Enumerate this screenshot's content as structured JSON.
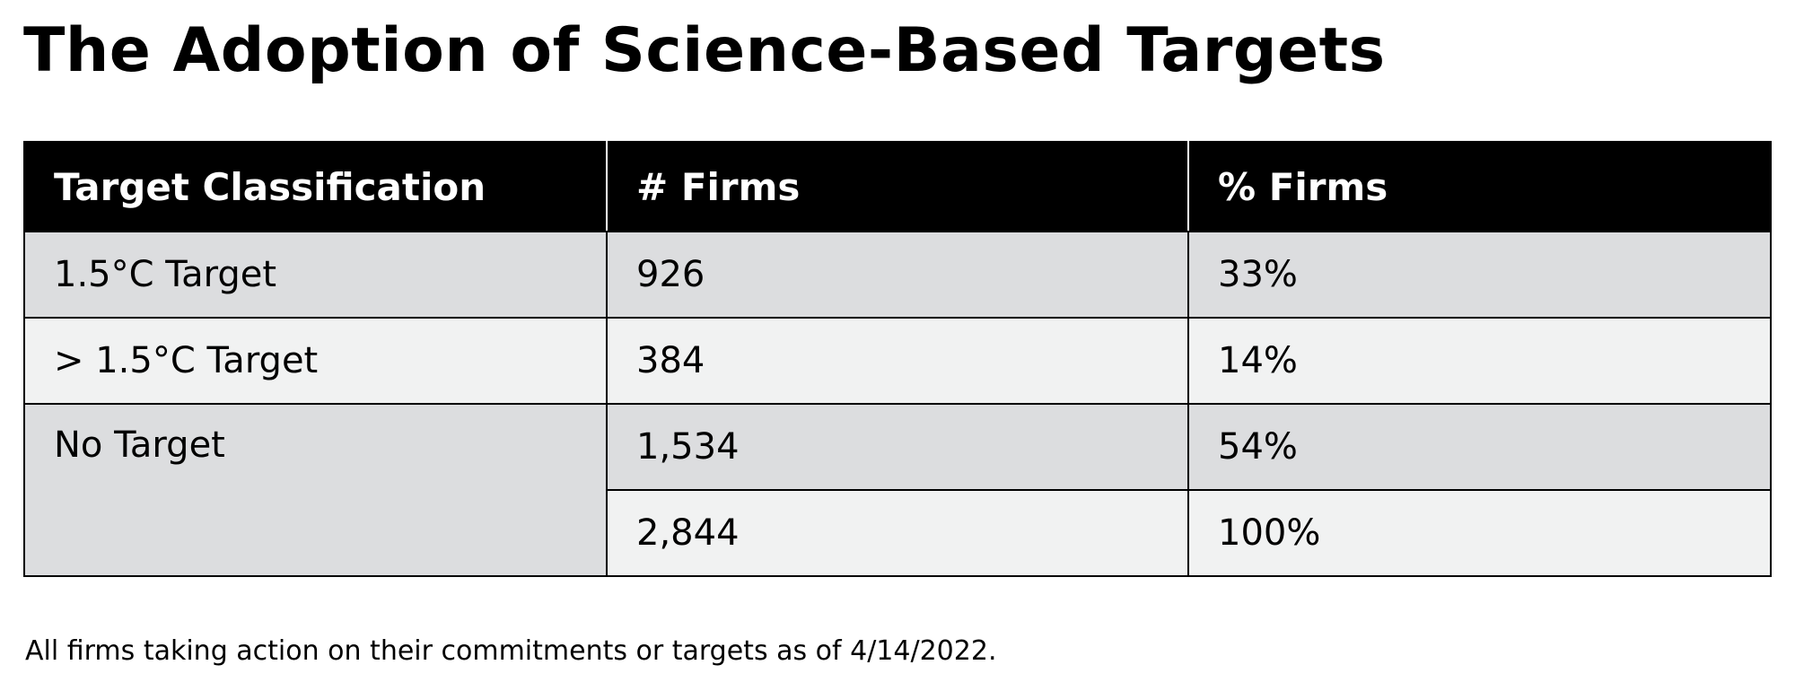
{
  "title": "The Adoption of Science-Based Targets",
  "footnote": "All firms taking action on their commitments or targets as of 4/14/2022.",
  "colors": {
    "header_background": "#000000",
    "header_text": "#ffffff",
    "row_dark": "#dcdddf",
    "row_light": "#f1f2f2"
  },
  "chart_data": {
    "type": "table",
    "title": "The Adoption of Science-Based Targets",
    "columns": [
      "Target Classification",
      "# Firms",
      "% Firms"
    ],
    "rows": [
      {
        "classification": "1.5°C Target",
        "firms": "926",
        "percent": "33%"
      },
      {
        "classification": "> 1.5°C Target",
        "firms": "384",
        "percent": "14%"
      },
      {
        "classification": "No Target",
        "firms": "1,534",
        "percent": "54%"
      },
      {
        "classification": "",
        "firms": "2,844",
        "percent": "100%"
      }
    ]
  }
}
